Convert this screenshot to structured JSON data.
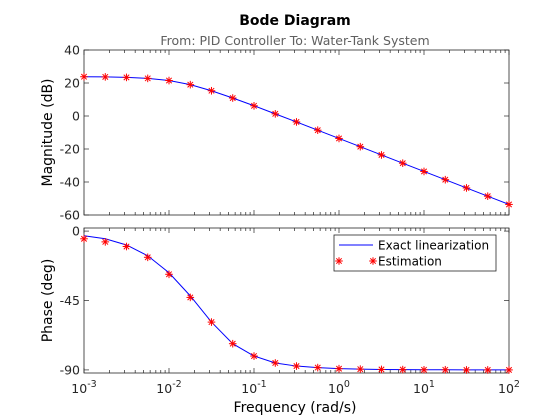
{
  "figure": {
    "title": "Bode Diagram",
    "subtitle": "From: PID Controller  To: Water-Tank System",
    "xlabel": "Frequency  (rad/s)",
    "colors": {
      "exact": "#0000ff",
      "estimation": "#ff0000",
      "axes": "#262626",
      "subtitle": "#606060"
    }
  },
  "chart_data": [
    {
      "type": "line",
      "panel": "magnitude",
      "xscale": "log",
      "xlim": [
        0.001,
        100
      ],
      "ylim": [
        -60,
        40
      ],
      "ylabel": "Magnitude (dB)",
      "yticks": [
        40,
        20,
        0,
        -20,
        -40,
        -60
      ],
      "ytick_labels": [
        "40",
        "20",
        "0",
        "-20",
        "-40",
        "-60"
      ],
      "grid": false,
      "series": [
        {
          "name": "Exact linearization",
          "style": "line",
          "x": [
            0.001,
            0.00178,
            0.00316,
            0.00562,
            0.01,
            0.0178,
            0.0316,
            0.0562,
            0.1,
            0.178,
            0.316,
            0.562,
            1,
            1.78,
            3.16,
            5.62,
            10,
            17.8,
            31.6,
            56.2,
            100
          ],
          "y": [
            23.8,
            23.7,
            23.4,
            22.8,
            21.5,
            19.0,
            15.3,
            10.9,
            6.2,
            1.3,
            -3.6,
            -8.6,
            -13.6,
            -18.6,
            -23.6,
            -28.6,
            -33.6,
            -38.6,
            -43.6,
            -48.6,
            -53.6
          ]
        },
        {
          "name": "Estimation",
          "style": "marker",
          "x": [
            0.001,
            0.00178,
            0.00316,
            0.00562,
            0.01,
            0.0178,
            0.0316,
            0.0562,
            0.1,
            0.178,
            0.316,
            0.562,
            1,
            1.78,
            3.16,
            5.62,
            10,
            17.8,
            31.6,
            56.2,
            100
          ],
          "y": [
            23.8,
            23.7,
            23.4,
            22.8,
            21.5,
            19.0,
            15.3,
            10.9,
            6.2,
            1.3,
            -3.6,
            -8.6,
            -13.6,
            -18.6,
            -23.6,
            -28.6,
            -33.6,
            -38.6,
            -43.6,
            -48.6,
            -53.6
          ]
        }
      ]
    },
    {
      "type": "line",
      "panel": "phase",
      "xscale": "log",
      "xlim": [
        0.001,
        100
      ],
      "ylim": [
        -92,
        2
      ],
      "ylabel": "Phase (deg)",
      "yticks": [
        0,
        -45,
        -90
      ],
      "ytick_labels": [
        "0",
        "-45",
        "-90"
      ],
      "xticks": [
        0.001,
        0.01,
        0.1,
        1,
        10,
        100
      ],
      "xtick_labels": [
        "10",
        "10",
        "10",
        "10",
        "10",
        "10"
      ],
      "xtick_exponents": [
        "-3",
        "-2",
        "-1",
        "0",
        "1",
        "2"
      ],
      "grid": false,
      "legend": "top-right",
      "series": [
        {
          "name": "Exact linearization",
          "style": "line",
          "x": [
            0.001,
            0.00178,
            0.00316,
            0.00562,
            0.01,
            0.0178,
            0.0316,
            0.0562,
            0.1,
            0.178,
            0.316,
            0.562,
            1,
            1.78,
            3.16,
            5.62,
            10,
            17.8,
            31.6,
            56.2,
            100
          ],
          "y": [
            -3,
            -5,
            -9,
            -16,
            -27,
            -42,
            -59,
            -73,
            -81,
            -85.5,
            -87.5,
            -88.5,
            -89.2,
            -89.5,
            -89.7,
            -89.8,
            -89.9,
            -89.9,
            -90,
            -90,
            -90
          ]
        },
        {
          "name": "Estimation",
          "style": "marker",
          "x": [
            0.001,
            0.00178,
            0.00316,
            0.00562,
            0.01,
            0.0178,
            0.0316,
            0.0562,
            0.1,
            0.178,
            0.316,
            0.562,
            1,
            1.78,
            3.16,
            5.62,
            10,
            17.8,
            31.6,
            56.2,
            100
          ],
          "y": [
            -5,
            -7,
            -10,
            -17,
            -28,
            -43,
            -59,
            -73,
            -81,
            -85.5,
            -87.5,
            -88.5,
            -89.2,
            -89.5,
            -89.7,
            -89.8,
            -89.9,
            -89.9,
            -90,
            -90,
            -90
          ]
        }
      ]
    }
  ]
}
